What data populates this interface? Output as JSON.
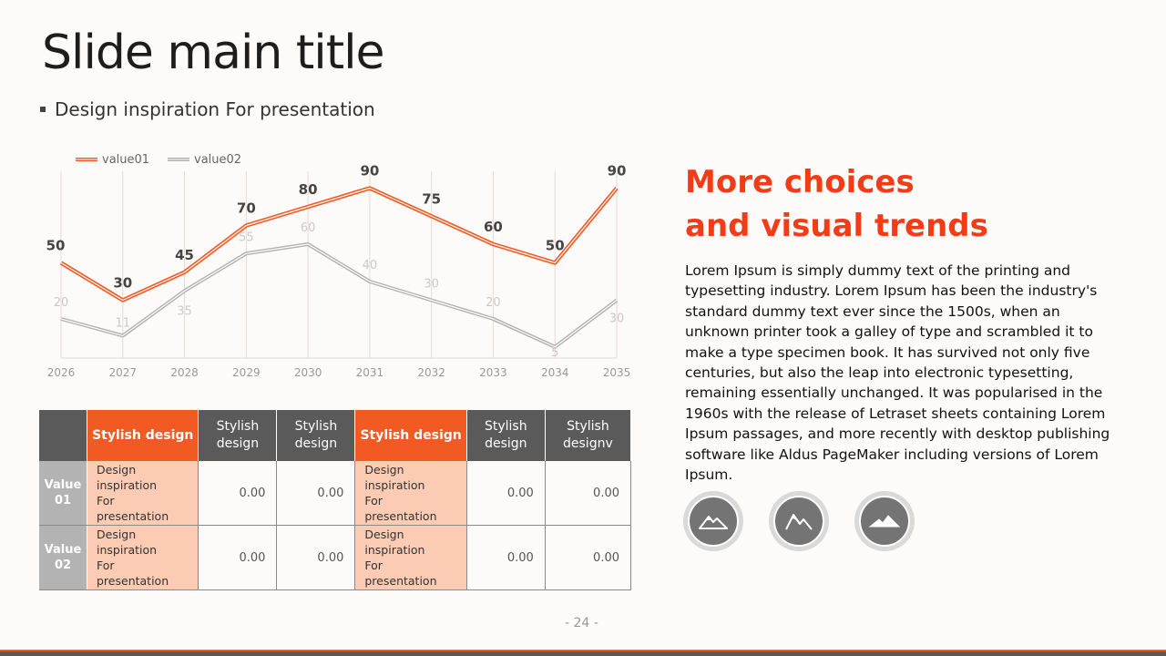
{
  "slide": {
    "title": "Slide main title",
    "subtitle": "Design inspiration For presentation",
    "page_number": "- 24 -"
  },
  "side": {
    "heading_line1": "More choices",
    "heading_line2": "and visual trends",
    "body": "Lorem Ipsum is simply dummy text of the printing and typesetting industry. Lorem Ipsum has been the industry's standard dummy text ever since the 1500s, when an unknown printer took a galley of type and scrambled it to make a type specimen book. It has survived not only five centuries, but also the leap into electronic typesetting, remaining essentially unchanged. It was popularised in the 1960s with the release of Letraset sheets containing Lorem Ipsum passages, and more recently with desktop publishing software like Aldus PageMaker including versions of Lorem Ipsum.",
    "icons": [
      "mountain-icon",
      "mountain-icon",
      "mountain-icon"
    ],
    "heading_color": "#f23c17"
  },
  "table": {
    "headers": [
      "",
      "Stylish design",
      "Stylish design",
      "Stylish design",
      "Stylish design",
      "Stylish design",
      "Stylish designv"
    ],
    "rows": [
      {
        "label_line1": "Value",
        "label_line2": "01",
        "cells": [
          "Design inspiration\nFor presentation",
          "0.00",
          "0.00",
          "Design inspiration\nFor presentation",
          "0.00",
          "0.00"
        ]
      },
      {
        "label_line1": "Value",
        "label_line2": "02",
        "cells": [
          "Design inspiration\nFor presentation",
          "0.00",
          "0.00",
          "Design inspiration\nFor presentation",
          "0.00",
          "0.00"
        ]
      }
    ]
  },
  "colors": {
    "accent": "#f15a22",
    "gray": "#5a5a5a",
    "light_gray": "#b3b3b3"
  },
  "chart_data": {
    "type": "line",
    "x": [
      "2026",
      "2027",
      "2028",
      "2029",
      "2030",
      "2031",
      "2032",
      "2033",
      "2034",
      "2035"
    ],
    "series": [
      {
        "name": "value01",
        "color": "#f15a22",
        "values": [
          50,
          30,
          45,
          70,
          80,
          90,
          75,
          60,
          50,
          90
        ]
      },
      {
        "name": "value02",
        "color": "#b0b0b0",
        "values": [
          20,
          11,
          35,
          55,
          60,
          40,
          30,
          20,
          5,
          30
        ]
      }
    ],
    "ylim": [
      0,
      100
    ],
    "legend": "top-left",
    "grid": "vertical"
  }
}
